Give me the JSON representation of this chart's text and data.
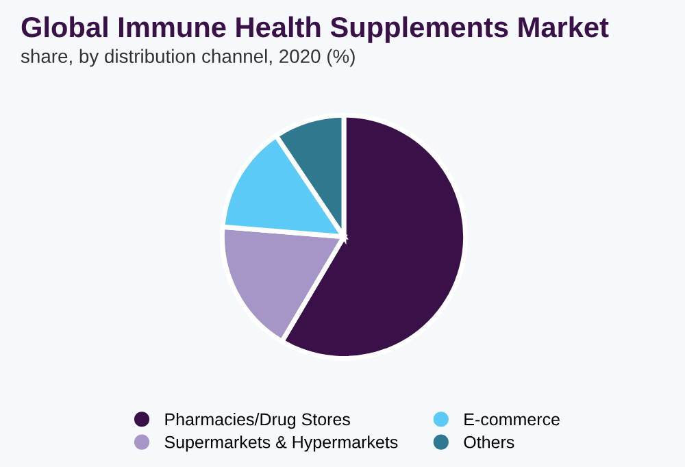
{
  "chart_data": {
    "type": "pie",
    "title": "Global Immune Health Supplements Market",
    "subtitle": "share, by distribution channel, 2020 (%)",
    "categories": [
      "Pharmacies/Drug Stores",
      "Supermarkets & Hypermarkets",
      "E-commerce",
      "Others"
    ],
    "values": [
      58.5,
      17.8,
      14.3,
      9.4
    ],
    "colors": [
      "#3a1048",
      "#a696c8",
      "#5ccaf6",
      "#2e7890"
    ],
    "legend": "bottom"
  }
}
